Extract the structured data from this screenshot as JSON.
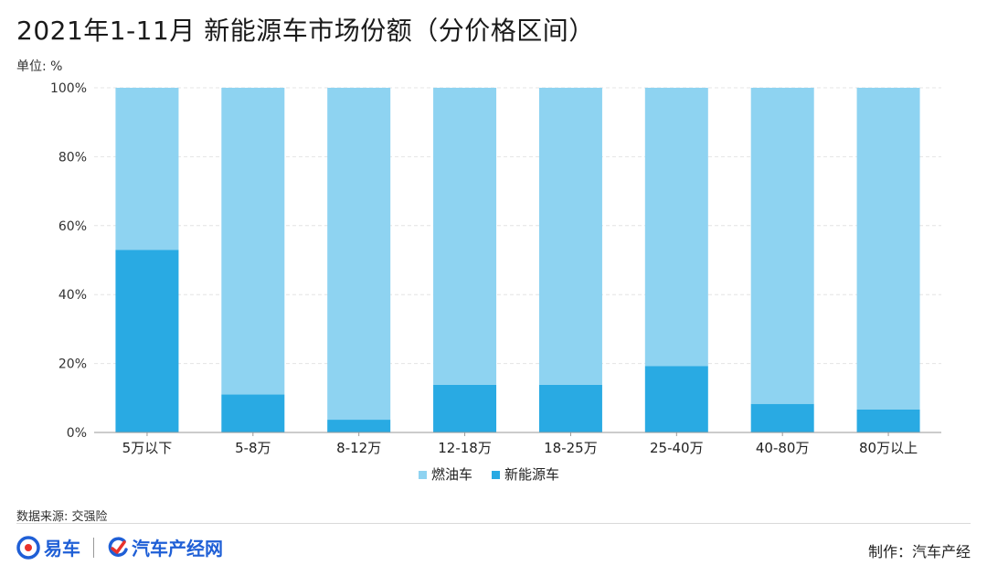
{
  "header": {
    "title": "2021年1-11月 新能源车市场份额（分价格区间）",
    "unit": "单位: %"
  },
  "footer": {
    "source": "数据来源: 交强险",
    "brand_a": "易车",
    "brand_b": "汽车产经网",
    "credit": "制作：汽车产经"
  },
  "colors": {
    "fuel": "#8ed3f1",
    "nev": "#29aae3",
    "grid": "#e4e4e4",
    "axis": "#999999"
  },
  "chart_data": {
    "type": "bar",
    "stacked": true,
    "percent": true,
    "categories": [
      "5万以下",
      "5-8万",
      "8-12万",
      "12-18万",
      "18-25万",
      "25-40万",
      "40-80万",
      "80万以上"
    ],
    "series": [
      {
        "name": "燃油车",
        "values": [
          47,
          89,
          96.3,
          86.2,
          86.2,
          80.7,
          91.7,
          93.3
        ]
      },
      {
        "name": "新能源车",
        "values": [
          53,
          11,
          3.7,
          13.8,
          13.8,
          19.3,
          8.3,
          6.7
        ]
      }
    ],
    "yticks": [
      "0%",
      "20%",
      "40%",
      "60%",
      "80%",
      "100%"
    ],
    "ylim": [
      0,
      100
    ],
    "grid": true,
    "legend": "bottom"
  }
}
